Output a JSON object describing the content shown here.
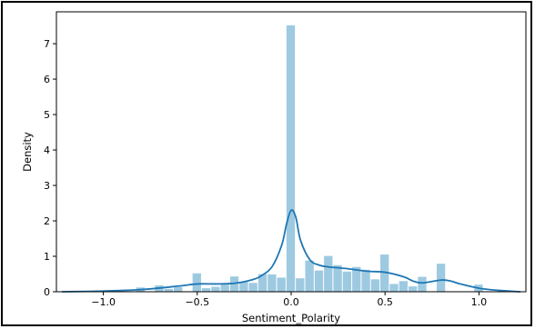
{
  "chart_data": {
    "type": "histogram",
    "title": "",
    "xlabel": "Sentiment_Polarity",
    "ylabel": "Density",
    "xlim": [
      -1.25,
      1.25
    ],
    "ylim": [
      0,
      7.9
    ],
    "xticks": [
      -1.0,
      -0.5,
      0.0,
      0.5,
      1.0
    ],
    "xtick_labels": [
      "−1.0",
      "−0.5",
      "0.0",
      "0.5",
      "1.0"
    ],
    "yticks": [
      0,
      1,
      2,
      3,
      4,
      5,
      6,
      7
    ],
    "ytick_labels": [
      "0",
      "1",
      "2",
      "3",
      "4",
      "5",
      "6",
      "7"
    ],
    "grid": false,
    "bar_color": "#9ecae1",
    "kde_color": "#1f77b4",
    "bin_width": 0.05,
    "bins": [
      {
        "x": -0.8,
        "density": 0.12
      },
      {
        "x": -0.7,
        "density": 0.18
      },
      {
        "x": -0.65,
        "density": 0.08
      },
      {
        "x": -0.6,
        "density": 0.13
      },
      {
        "x": -0.5,
        "density": 0.52
      },
      {
        "x": -0.45,
        "density": 0.1
      },
      {
        "x": -0.4,
        "density": 0.14
      },
      {
        "x": -0.35,
        "density": 0.2
      },
      {
        "x": -0.3,
        "density": 0.43
      },
      {
        "x": -0.25,
        "density": 0.28
      },
      {
        "x": -0.2,
        "density": 0.25
      },
      {
        "x": -0.15,
        "density": 0.5
      },
      {
        "x": -0.1,
        "density": 0.49
      },
      {
        "x": -0.05,
        "density": 0.4
      },
      {
        "x": 0.0,
        "density": 7.52
      },
      {
        "x": 0.05,
        "density": 0.38
      },
      {
        "x": 0.1,
        "density": 0.88
      },
      {
        "x": 0.15,
        "density": 0.6
      },
      {
        "x": 0.2,
        "density": 1.01
      },
      {
        "x": 0.25,
        "density": 0.75
      },
      {
        "x": 0.3,
        "density": 0.57
      },
      {
        "x": 0.35,
        "density": 0.7
      },
      {
        "x": 0.4,
        "density": 0.62
      },
      {
        "x": 0.45,
        "density": 0.35
      },
      {
        "x": 0.5,
        "density": 1.05
      },
      {
        "x": 0.55,
        "density": 0.22
      },
      {
        "x": 0.6,
        "density": 0.3
      },
      {
        "x": 0.65,
        "density": 0.15
      },
      {
        "x": 0.7,
        "density": 0.42
      },
      {
        "x": 0.8,
        "density": 0.79
      },
      {
        "x": 1.0,
        "density": 0.2
      }
    ],
    "kde": {
      "x": [
        -1.22,
        -1.0,
        -0.8,
        -0.6,
        -0.5,
        -0.4,
        -0.3,
        -0.2,
        -0.15,
        -0.1,
        -0.05,
        -0.025,
        0.0,
        0.025,
        0.05,
        0.1,
        0.15,
        0.2,
        0.3,
        0.4,
        0.5,
        0.6,
        0.65,
        0.7,
        0.8,
        0.85,
        0.9,
        1.0,
        1.1,
        1.22
      ],
      "y": [
        0.0,
        0.02,
        0.06,
        0.16,
        0.22,
        0.22,
        0.24,
        0.35,
        0.48,
        0.72,
        1.32,
        1.9,
        2.3,
        2.1,
        1.45,
        0.9,
        0.75,
        0.7,
        0.65,
        0.58,
        0.55,
        0.42,
        0.3,
        0.25,
        0.33,
        0.3,
        0.22,
        0.1,
        0.04,
        0.0
      ]
    }
  }
}
